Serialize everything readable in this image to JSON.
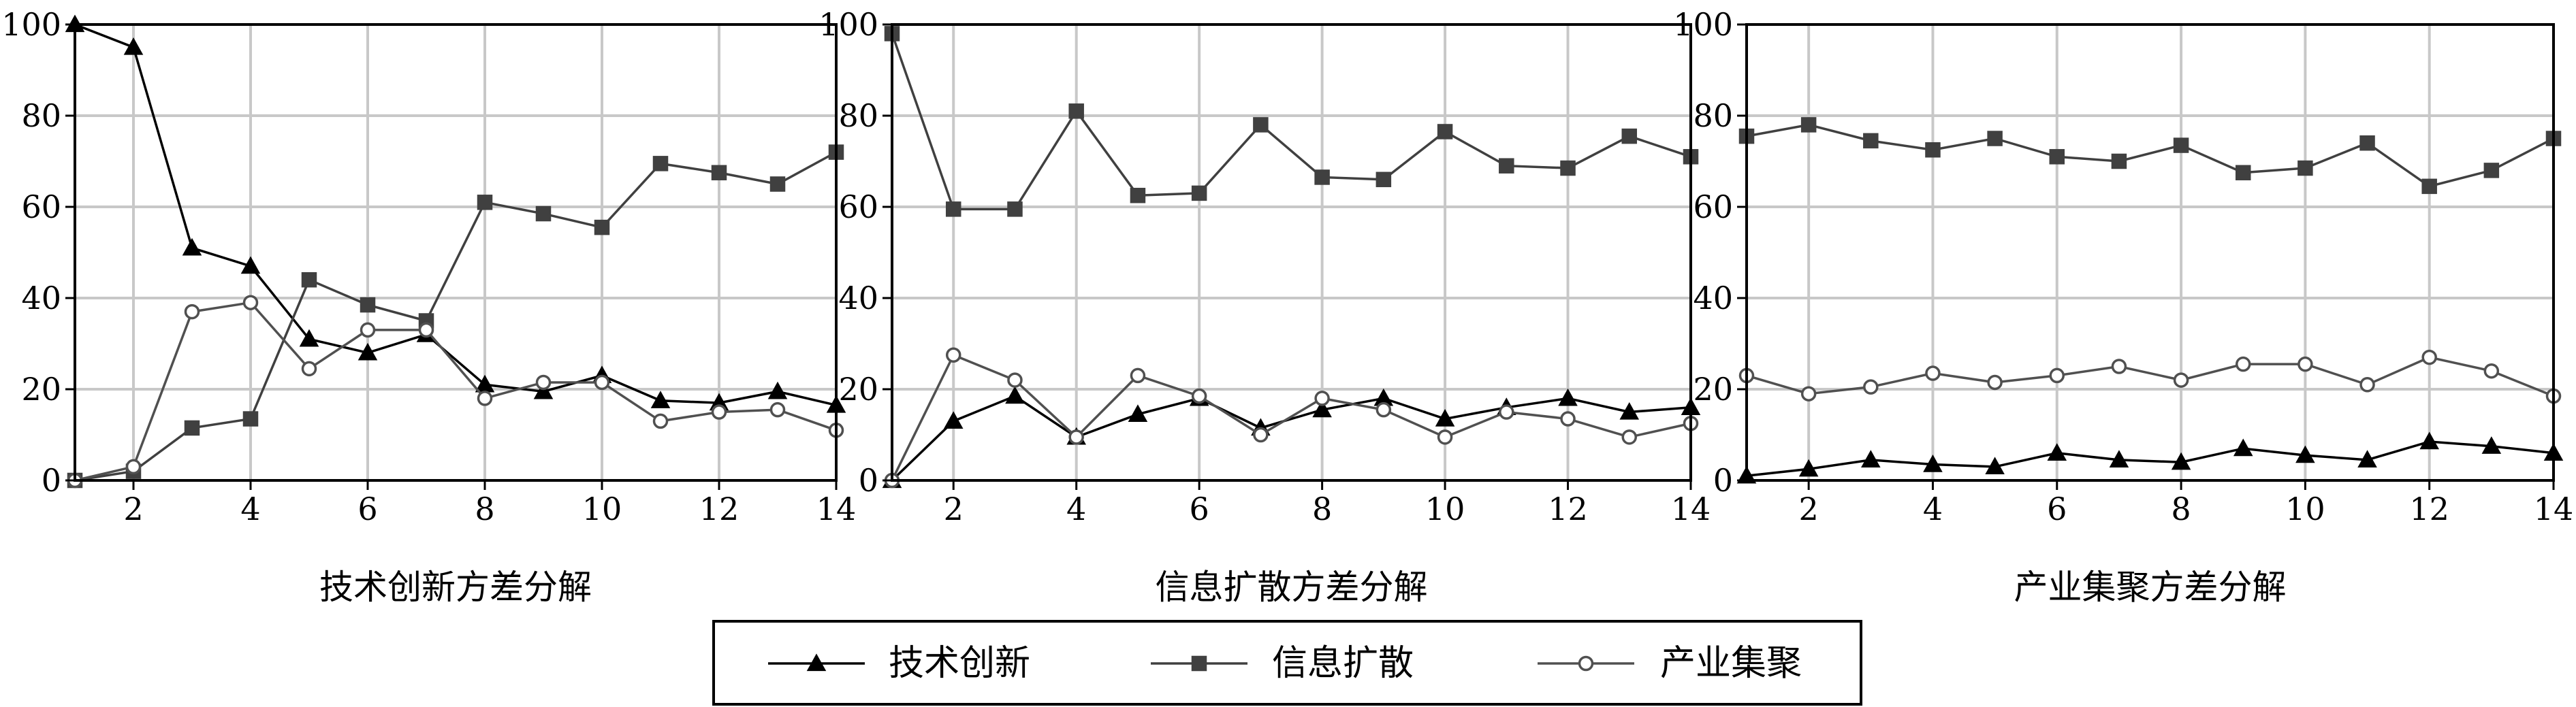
{
  "chart_data": [
    {
      "type": "line",
      "xlabel": "技术创新方差分解",
      "ylabel": "",
      "x": [
        1,
        2,
        3,
        4,
        5,
        6,
        7,
        8,
        9,
        10,
        11,
        12,
        13,
        14
      ],
      "xlim": [
        1,
        14
      ],
      "ylim": [
        0,
        100
      ],
      "xticks": [
        2,
        4,
        6,
        8,
        10,
        12,
        14
      ],
      "yticks": [
        0,
        20,
        40,
        60,
        80,
        100
      ],
      "grid": true,
      "series": [
        {
          "name": "技术创新",
          "marker": "triangle",
          "color": "#000000",
          "values": [
            100,
            95,
            51,
            47,
            31,
            28,
            32,
            21,
            19.5,
            23,
            17.5,
            17,
            19.5,
            16.5
          ]
        },
        {
          "name": "信息扩散",
          "marker": "square",
          "color": "#404040",
          "values": [
            0,
            2,
            11.5,
            13.5,
            44,
            38.5,
            35,
            61,
            58.5,
            55.5,
            69.5,
            67.5,
            65,
            72
          ]
        },
        {
          "name": "产业集聚",
          "marker": "circle",
          "color": "#505050",
          "values": [
            0,
            3,
            37,
            39,
            24.5,
            33,
            33,
            18,
            21.5,
            21.5,
            13,
            15,
            15.5,
            11
          ]
        }
      ]
    },
    {
      "type": "line",
      "xlabel": "信息扩散方差分解",
      "ylabel": "",
      "x": [
        1,
        2,
        3,
        4,
        5,
        6,
        7,
        8,
        9,
        10,
        11,
        12,
        13,
        14
      ],
      "xlim": [
        1,
        14
      ],
      "ylim": [
        0,
        100
      ],
      "xticks": [
        2,
        4,
        6,
        8,
        10,
        12,
        14
      ],
      "yticks": [
        0,
        20,
        40,
        60,
        80,
        100
      ],
      "grid": true,
      "series": [
        {
          "name": "技术创新",
          "marker": "triangle",
          "color": "#000000",
          "values": [
            0,
            13,
            18.5,
            9.5,
            14.5,
            18,
            11.5,
            15.5,
            18,
            13.5,
            16,
            18,
            15,
            16
          ]
        },
        {
          "name": "信息扩散",
          "marker": "square",
          "color": "#404040",
          "values": [
            98,
            59.5,
            59.5,
            81,
            62.5,
            63,
            78,
            66.5,
            66,
            76.5,
            69,
            68.5,
            75.5,
            71
          ]
        },
        {
          "name": "产业集聚",
          "marker": "circle",
          "color": "#505050",
          "values": [
            0,
            27.5,
            22,
            9.5,
            23,
            18.5,
            10,
            18,
            15.5,
            9.5,
            15,
            13.5,
            9.5,
            12.5
          ]
        }
      ]
    },
    {
      "type": "line",
      "xlabel": "产业集聚方差分解",
      "ylabel": "",
      "x": [
        1,
        2,
        3,
        4,
        5,
        6,
        7,
        8,
        9,
        10,
        11,
        12,
        13,
        14
      ],
      "xlim": [
        1,
        14
      ],
      "ylim": [
        0,
        100
      ],
      "xticks": [
        2,
        4,
        6,
        8,
        10,
        12,
        14
      ],
      "yticks": [
        0,
        20,
        40,
        60,
        80,
        100
      ],
      "grid": true,
      "series": [
        {
          "name": "技术创新",
          "marker": "triangle",
          "color": "#000000",
          "values": [
            1,
            2.5,
            4.5,
            3.5,
            3,
            6,
            4.5,
            4,
            7,
            5.5,
            4.5,
            8.5,
            7.5,
            6
          ]
        },
        {
          "name": "信息扩散",
          "marker": "square",
          "color": "#404040",
          "values": [
            75.5,
            78,
            74.5,
            72.5,
            75,
            71,
            70,
            73.5,
            67.5,
            68.5,
            74,
            64.5,
            68,
            75
          ]
        },
        {
          "name": "产业集聚",
          "marker": "circle",
          "color": "#505050",
          "values": [
            23,
            19,
            20.5,
            23.5,
            21.5,
            23,
            25,
            22,
            25.5,
            25.5,
            21,
            27,
            24,
            18.5
          ]
        }
      ]
    }
  ],
  "legend": {
    "placement": "bottom-center",
    "items": [
      {
        "label": "技术创新",
        "marker": "triangle",
        "color": "#000000"
      },
      {
        "label": "信息扩散",
        "marker": "square",
        "color": "#404040"
      },
      {
        "label": "产业集聚",
        "marker": "circle",
        "color": "#505050"
      }
    ]
  }
}
